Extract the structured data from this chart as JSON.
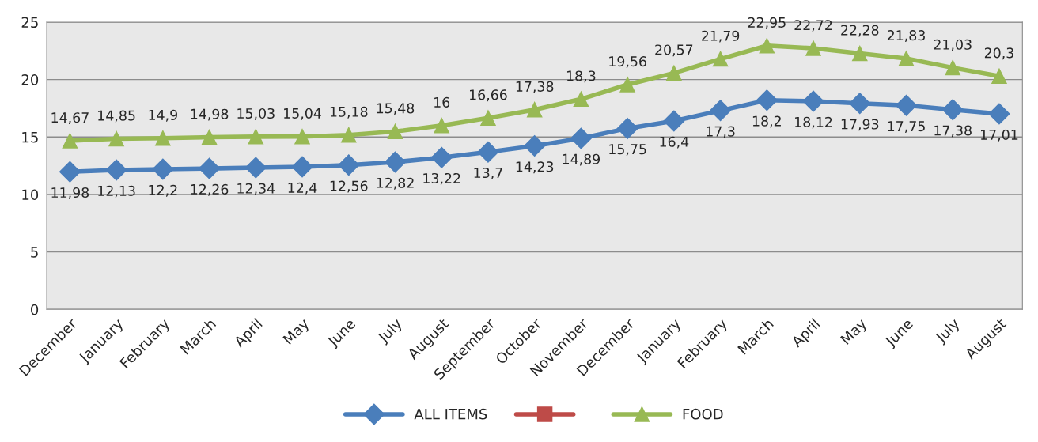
{
  "chart_data": {
    "type": "line",
    "categories": [
      "December",
      "January",
      "February",
      "March",
      "April",
      "May",
      "June",
      "July",
      "August",
      "September",
      "October",
      "November",
      "December",
      "January",
      "February",
      "March",
      "April",
      "May",
      "June",
      "July",
      "August"
    ],
    "series": [
      {
        "name": "ALL ITEMS",
        "color": "#4a7ebb",
        "marker": "diamond",
        "values": [
          11.98,
          12.13,
          12.2,
          12.26,
          12.34,
          12.4,
          12.56,
          12.82,
          13.22,
          13.7,
          14.23,
          14.89,
          15.75,
          16.4,
          17.3,
          18.2,
          18.12,
          17.93,
          17.75,
          17.38,
          17.01
        ],
        "value_labels": [
          "11,98",
          "12,13",
          "12,2",
          "12,26",
          "12,34",
          "12,4",
          "12,56",
          "12,82",
          "13,22",
          "13,7",
          "14,23",
          "14,89",
          "15,75",
          "16,4",
          "17,3",
          "18,2",
          "18,12",
          "17,93",
          "17,75",
          "17,38",
          "17,01"
        ]
      },
      {
        "color": "#be4b48",
        "marker": "square",
        "values": [
          null,
          null,
          null,
          null,
          null,
          null,
          null,
          null,
          null,
          null,
          null,
          null,
          null,
          null,
          null,
          null,
          null,
          null,
          null,
          null,
          null
        ]
      },
      {
        "name": "FOOD",
        "color": "#98b954",
        "marker": "triangle",
        "values": [
          14.67,
          14.85,
          14.9,
          14.98,
          15.03,
          15.04,
          15.18,
          15.48,
          16,
          16.66,
          17.38,
          18.3,
          19.56,
          20.57,
          21.79,
          22.95,
          22.72,
          22.28,
          21.83,
          21.03,
          20.3
        ],
        "value_labels": [
          "14,67",
          "14,85",
          "14,9",
          "14,98",
          "15,03",
          "15,04",
          "15,18",
          "15,48",
          "16",
          "16,66",
          "17,38",
          "18,3",
          "19,56",
          "20,57",
          "21,79",
          "22,95",
          "22,72",
          "22,28",
          "21,83",
          "21,03",
          "20,3"
        ]
      }
    ],
    "ylim": [
      0,
      25
    ],
    "yticks": [
      0,
      5,
      10,
      15,
      20,
      25
    ],
    "grid": "y",
    "legend": "bottom"
  }
}
